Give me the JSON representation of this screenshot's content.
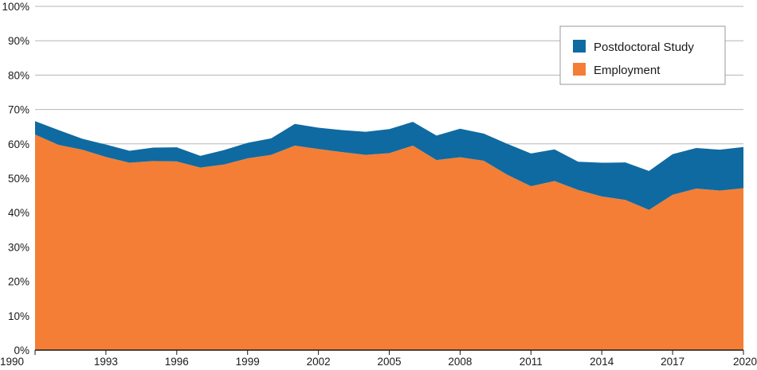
{
  "chart_data": {
    "type": "area",
    "stacked": true,
    "x": [
      1990,
      1991,
      1992,
      1993,
      1994,
      1995,
      1996,
      1997,
      1998,
      1999,
      2000,
      2001,
      2002,
      2003,
      2004,
      2005,
      2006,
      2007,
      2008,
      2009,
      2010,
      2011,
      2012,
      2013,
      2014,
      2015,
      2016,
      2017,
      2018,
      2019,
      2020
    ],
    "series": [
      {
        "name": "Employment",
        "color": "#f47e35",
        "values": [
          62.7,
          59.7,
          58.3,
          56.2,
          54.5,
          55.0,
          54.9,
          53.1,
          54.0,
          55.8,
          56.8,
          59.5,
          58.5,
          57.6,
          56.8,
          57.3,
          59.5,
          55.3,
          56.1,
          55.1,
          51.0,
          47.7,
          49.2,
          46.6,
          44.7,
          43.7,
          40.8,
          45.2,
          47.0,
          46.4,
          47.1
        ]
      },
      {
        "name": "Postdoctoral Study",
        "color": "#0f6aa1",
        "values": [
          3.9,
          4.3,
          3.2,
          3.6,
          3.5,
          3.9,
          4.1,
          3.4,
          4.2,
          4.5,
          4.8,
          6.3,
          6.2,
          6.4,
          6.7,
          7.0,
          6.9,
          7.1,
          8.3,
          7.9,
          9.0,
          9.5,
          9.2,
          8.2,
          9.8,
          10.9,
          11.3,
          11.8,
          11.8,
          11.9,
          12.0
        ]
      }
    ],
    "x_ticks": [
      "1990",
      "1993",
      "1996",
      "1999",
      "2002",
      "2005",
      "2008",
      "2011",
      "2014",
      "2017",
      "2020"
    ],
    "y_ticks": [
      "0%",
      "10%",
      "20%",
      "30%",
      "40%",
      "50%",
      "60%",
      "70%",
      "80%",
      "90%",
      "100%"
    ],
    "xlim": [
      1990,
      2020
    ],
    "ylim": [
      0,
      100
    ],
    "grid": "horizontal",
    "legend_position": "top-right",
    "legend": [
      {
        "label": "Postdoctoral Study",
        "color": "#0f6aa1"
      },
      {
        "label": "Employment",
        "color": "#f47e35"
      }
    ]
  }
}
